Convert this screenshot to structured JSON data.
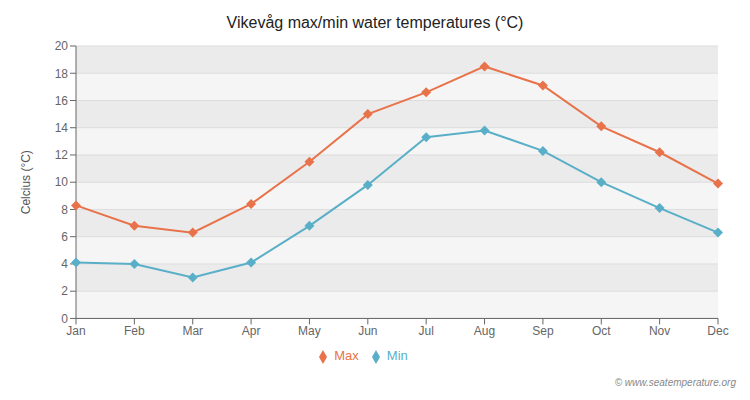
{
  "chart_data": {
    "type": "line",
    "title": "Vikevåg max/min water temperatures (°C)",
    "y_label": "Celcius (°C)",
    "categories": [
      "Jan",
      "Feb",
      "Mar",
      "Apr",
      "May",
      "Jun",
      "Jul",
      "Aug",
      "Sep",
      "Oct",
      "Nov",
      "Dec"
    ],
    "series": [
      {
        "name": "Max",
        "color": "#e8734a",
        "marker": "diamond",
        "values": [
          8.3,
          6.8,
          6.3,
          8.4,
          11.5,
          15.0,
          16.6,
          18.5,
          17.1,
          14.1,
          12.2,
          9.9
        ]
      },
      {
        "name": "Min",
        "color": "#5aafc8",
        "marker": "diamond",
        "values": [
          4.1,
          4.0,
          3.0,
          4.1,
          6.8,
          9.8,
          13.3,
          13.8,
          12.3,
          10.0,
          8.1,
          6.3
        ]
      }
    ],
    "ylim": [
      0,
      20
    ],
    "yticks": [
      0,
      2,
      4,
      6,
      8,
      10,
      12,
      14,
      16,
      18,
      20
    ],
    "grid": true,
    "legend": "bottom",
    "annotations": [
      "© www.seatemperature.org"
    ]
  }
}
